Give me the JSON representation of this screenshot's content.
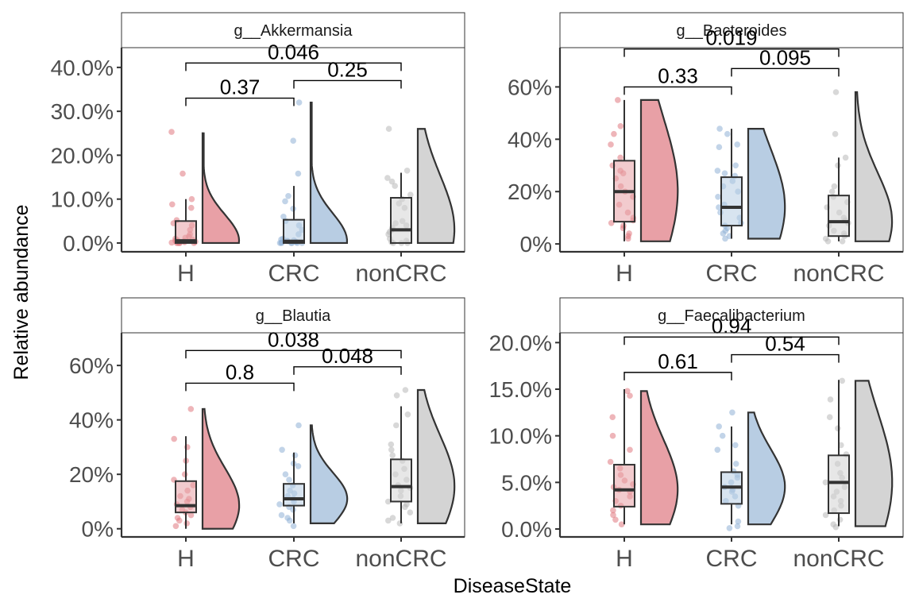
{
  "axes": {
    "xlabel": "DiseaseState",
    "ylabel": "Relative abundance"
  },
  "colors": {
    "H": "#e8a0a6",
    "CRC": "#b8cde3",
    "nonCRC": "#d4d4d4",
    "H_point": "#e07880",
    "CRC_point": "#8fb0d6",
    "nonCRC_point": "#b8b8b8"
  },
  "chart_data": [
    {
      "type": "raincloud",
      "panel": "g__Akkermansia",
      "categories": [
        "H",
        "CRC",
        "nonCRC"
      ],
      "ylim": [
        -0.02,
        0.445
      ],
      "yticks": [
        0,
        0.1,
        0.2,
        0.3,
        0.4
      ],
      "ytick_labels": [
        "0.0%",
        "10.0%",
        "20.0%",
        "30.0%",
        "40.0%"
      ],
      "box": [
        {
          "q1": 0.0,
          "median": 0.005,
          "q3": 0.05,
          "lo": 0.0,
          "hi": 0.1
        },
        {
          "q1": 0.0,
          "median": 0.004,
          "q3": 0.053,
          "lo": 0.0,
          "hi": 0.13
        },
        {
          "q1": 0.0,
          "median": 0.03,
          "q3": 0.103,
          "lo": 0.0,
          "hi": 0.16
        }
      ],
      "max": [
        0.25,
        0.32,
        0.26
      ],
      "points": [
        [
          0.253,
          0.158,
          0.1,
          0.088,
          0.08,
          0.052,
          0.045,
          0.04,
          0.03,
          0.02,
          0.015,
          0.012,
          0.01,
          0.008,
          0.006,
          0.005,
          0.004,
          0.003,
          0.002,
          0.001,
          0.0,
          0.0,
          0.0,
          0.0,
          0.0
        ],
        [
          0.32,
          0.233,
          0.158,
          0.107,
          0.095,
          0.078,
          0.06,
          0.05,
          0.04,
          0.03,
          0.02,
          0.01,
          0.008,
          0.006,
          0.005,
          0.004,
          0.003,
          0.002,
          0.001,
          0.0,
          0.0,
          0.0,
          0.0,
          0.0,
          0.0
        ],
        [
          0.26,
          0.165,
          0.148,
          0.14,
          0.13,
          0.11,
          0.1,
          0.09,
          0.08,
          0.05,
          0.045,
          0.04,
          0.035,
          0.03,
          0.025,
          0.02,
          0.01,
          0.005,
          0.002,
          0.0,
          0.0,
          0.0
        ]
      ],
      "comparisons": [
        {
          "label": "0.37",
          "from": 0,
          "to": 1,
          "y": 0.33
        },
        {
          "label": "0.25",
          "from": 1,
          "to": 2,
          "y": 0.37
        },
        {
          "label": "0.046",
          "from": 0,
          "to": 2,
          "y": 0.41
        }
      ]
    },
    {
      "type": "raincloud",
      "panel": "g__Bacteroides",
      "categories": [
        "H",
        "CRC",
        "nonCRC"
      ],
      "ylim": [
        -0.03,
        0.75
      ],
      "yticks": [
        0,
        0.2,
        0.4,
        0.6
      ],
      "ytick_labels": [
        "0%",
        "20%",
        "40%",
        "60%"
      ],
      "box": [
        {
          "q1": 0.085,
          "median": 0.2,
          "q3": 0.318,
          "lo": 0.01,
          "hi": 0.55
        },
        {
          "q1": 0.07,
          "median": 0.14,
          "q3": 0.255,
          "lo": 0.02,
          "hi": 0.44
        },
        {
          "q1": 0.03,
          "median": 0.085,
          "q3": 0.185,
          "lo": 0.01,
          "hi": 0.33
        }
      ],
      "max": [
        0.55,
        0.44,
        0.58
      ],
      "points": [
        [
          0.55,
          0.45,
          0.42,
          0.38,
          0.33,
          0.3,
          0.28,
          0.27,
          0.25,
          0.22,
          0.2,
          0.18,
          0.15,
          0.12,
          0.1,
          0.09,
          0.08,
          0.07,
          0.06,
          0.04,
          0.03,
          0.02
        ],
        [
          0.44,
          0.42,
          0.38,
          0.37,
          0.3,
          0.28,
          0.27,
          0.26,
          0.24,
          0.22,
          0.2,
          0.18,
          0.15,
          0.14,
          0.12,
          0.1,
          0.08,
          0.07,
          0.06,
          0.05,
          0.04,
          0.03,
          0.02
        ],
        [
          0.58,
          0.42,
          0.33,
          0.3,
          0.22,
          0.2,
          0.18,
          0.16,
          0.14,
          0.12,
          0.1,
          0.09,
          0.08,
          0.07,
          0.05,
          0.04,
          0.03,
          0.02,
          0.01,
          0.01
        ]
      ],
      "comparisons": [
        {
          "label": "0.33",
          "from": 0,
          "to": 1,
          "y": 0.6
        },
        {
          "label": "0.095",
          "from": 1,
          "to": 2,
          "y": 0.67
        },
        {
          "label": "0.019",
          "from": 0,
          "to": 2,
          "y": 0.745
        }
      ]
    },
    {
      "type": "raincloud",
      "panel": "g__Blautia",
      "categories": [
        "H",
        "CRC",
        "nonCRC"
      ],
      "ylim": [
        -0.03,
        0.72
      ],
      "yticks": [
        0,
        0.2,
        0.4,
        0.6
      ],
      "ytick_labels": [
        "0%",
        "20%",
        "40%",
        "60%"
      ],
      "box": [
        {
          "q1": 0.06,
          "median": 0.085,
          "q3": 0.175,
          "lo": 0.0,
          "hi": 0.34
        },
        {
          "q1": 0.085,
          "median": 0.11,
          "q3": 0.165,
          "lo": 0.02,
          "hi": 0.28
        },
        {
          "q1": 0.1,
          "median": 0.155,
          "q3": 0.255,
          "lo": 0.02,
          "hi": 0.45
        }
      ],
      "max": [
        0.44,
        0.38,
        0.51
      ],
      "points": [
        [
          0.44,
          0.33,
          0.3,
          0.25,
          0.2,
          0.18,
          0.16,
          0.14,
          0.12,
          0.11,
          0.1,
          0.09,
          0.08,
          0.07,
          0.06,
          0.05,
          0.04,
          0.03,
          0.02,
          0.01
        ],
        [
          0.38,
          0.29,
          0.27,
          0.24,
          0.23,
          0.2,
          0.18,
          0.16,
          0.14,
          0.13,
          0.12,
          0.11,
          0.1,
          0.09,
          0.08,
          0.07,
          0.05,
          0.04,
          0.03,
          0.01
        ],
        [
          0.51,
          0.49,
          0.42,
          0.38,
          0.31,
          0.29,
          0.27,
          0.25,
          0.22,
          0.2,
          0.18,
          0.16,
          0.15,
          0.14,
          0.12,
          0.1,
          0.09,
          0.08,
          0.06,
          0.04,
          0.03,
          0.02
        ]
      ],
      "comparisons": [
        {
          "label": "0.8",
          "from": 0,
          "to": 1,
          "y": 0.535
        },
        {
          "label": "0.048",
          "from": 1,
          "to": 2,
          "y": 0.595
        },
        {
          "label": "0.038",
          "from": 0,
          "to": 2,
          "y": 0.655
        }
      ]
    },
    {
      "type": "raincloud",
      "panel": "g__Faecalibacterium",
      "categories": [
        "H",
        "CRC",
        "nonCRC"
      ],
      "ylim": [
        -0.0085,
        0.2105
      ],
      "yticks": [
        0,
        0.05,
        0.1,
        0.15,
        0.2
      ],
      "ytick_labels": [
        "0.0%",
        "5.0%",
        "10.0%",
        "15.0%",
        "20.0%"
      ],
      "box": [
        {
          "q1": 0.024,
          "median": 0.042,
          "q3": 0.069,
          "lo": 0.005,
          "hi": 0.15
        },
        {
          "q1": 0.027,
          "median": 0.045,
          "q3": 0.061,
          "lo": 0.005,
          "hi": 0.11
        },
        {
          "q1": 0.017,
          "median": 0.05,
          "q3": 0.079,
          "lo": 0.003,
          "hi": 0.16
        }
      ],
      "max": [
        0.148,
        0.125,
        0.159
      ],
      "points": [
        [
          0.148,
          0.143,
          0.12,
          0.1,
          0.085,
          0.072,
          0.065,
          0.058,
          0.052,
          0.048,
          0.045,
          0.042,
          0.04,
          0.035,
          0.03,
          0.025,
          0.02,
          0.015,
          0.01,
          0.005
        ],
        [
          0.125,
          0.11,
          0.1,
          0.09,
          0.085,
          0.07,
          0.062,
          0.058,
          0.055,
          0.05,
          0.045,
          0.042,
          0.04,
          0.035,
          0.03,
          0.025,
          0.008,
          0.003,
          0.001
        ],
        [
          0.159,
          0.139,
          0.12,
          0.108,
          0.09,
          0.08,
          0.07,
          0.06,
          0.055,
          0.05,
          0.045,
          0.04,
          0.035,
          0.03,
          0.025,
          0.02,
          0.015,
          0.01,
          0.005,
          0.002
        ]
      ],
      "comparisons": [
        {
          "label": "0.61",
          "from": 0,
          "to": 1,
          "y": 0.168
        },
        {
          "label": "0.54",
          "from": 1,
          "to": 2,
          "y": 0.187
        },
        {
          "label": "0.94",
          "from": 0,
          "to": 2,
          "y": 0.206
        }
      ]
    }
  ]
}
